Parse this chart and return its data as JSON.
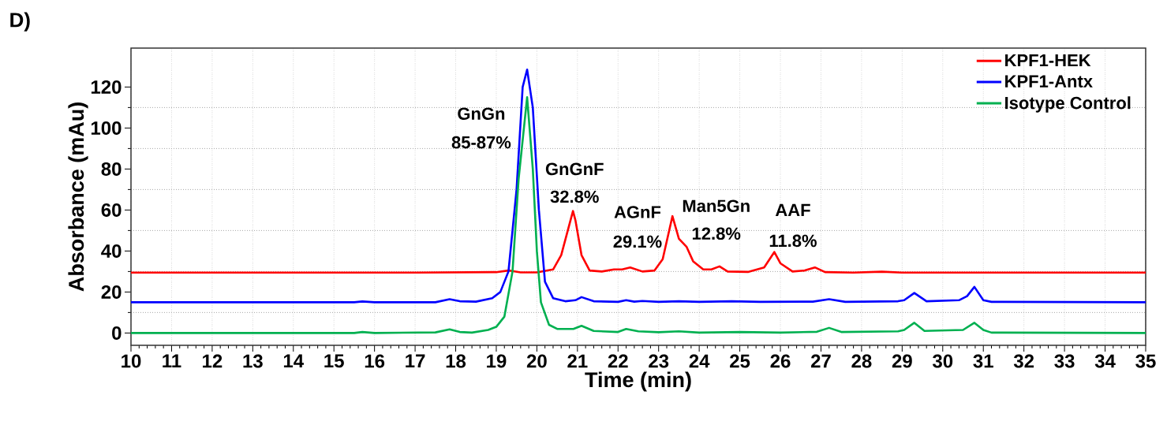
{
  "chart_data": {
    "type": "line",
    "xlabel": "Time (min)",
    "ylabel": "Absorbance (mAu)",
    "xlim": [
      10,
      35
    ],
    "ylim": [
      -6,
      139
    ],
    "xticks": [
      10,
      11,
      12,
      13,
      14,
      15,
      16,
      17,
      18,
      19,
      20,
      21,
      22,
      23,
      24,
      25,
      26,
      27,
      28,
      29,
      30,
      31,
      32,
      33,
      34,
      35
    ],
    "yticks": [
      0,
      20,
      40,
      60,
      80,
      100,
      120
    ],
    "grid": true,
    "legend": "top right",
    "marker": "none",
    "line_style": "solid",
    "annotations": [
      "D)",
      "GnGn",
      "85-87%",
      "GnGnF",
      "32.8%",
      "AGnF",
      "29.1%",
      "Man5Gn",
      "12.8%",
      "AAF",
      "11.8%"
    ],
    "series": [
      {
        "name": "KPF1-HEK",
        "color": "#ff0000",
        "x": [
          10,
          17,
          19.0,
          19.3,
          19.6,
          20.0,
          20.4,
          20.6,
          20.89,
          20.95,
          21.1,
          21.3,
          21.6,
          21.9,
          22.1,
          22.3,
          22.6,
          22.9,
          23.1,
          23.34,
          23.5,
          23.69,
          23.85,
          24.1,
          24.3,
          24.5,
          24.7,
          25.2,
          25.6,
          25.85,
          26.0,
          26.3,
          26.6,
          26.85,
          27.1,
          27.8,
          28.5,
          29,
          35
        ],
        "values": [
          29.5,
          29.5,
          29.7,
          30.5,
          29.6,
          29.6,
          31,
          38,
          59.5,
          55,
          38,
          30.5,
          30,
          31,
          31,
          32,
          30,
          30.5,
          36,
          57,
          46,
          42,
          35,
          31,
          31,
          32.5,
          30,
          29.8,
          32,
          39.5,
          34,
          30,
          30.5,
          32,
          29.7,
          29.5,
          29.9,
          29.5,
          29.5
        ]
      },
      {
        "name": "KPF1-Antx",
        "color": "#0000ff",
        "x": [
          10,
          15.5,
          15.7,
          16,
          17.5,
          17.85,
          18.1,
          18.5,
          18.9,
          19.1,
          19.3,
          19.5,
          19.65,
          19.76,
          19.9,
          20.05,
          20.2,
          20.4,
          20.7,
          20.95,
          21.1,
          21.4,
          22,
          22.2,
          22.4,
          22.6,
          23,
          23.5,
          24,
          24.8,
          25.5,
          26.8,
          27.2,
          27.6,
          28.9,
          29.05,
          29.3,
          29.6,
          30.4,
          30.6,
          30.78,
          31.0,
          31.2,
          35
        ],
        "values": [
          15,
          15,
          15.4,
          15,
          15,
          16.5,
          15.5,
          15.3,
          17,
          20,
          30,
          70,
          120,
          128.5,
          110,
          60,
          25,
          17,
          15.5,
          16,
          17.5,
          15.5,
          15.2,
          16,
          15.3,
          15.6,
          15.2,
          15.5,
          15.2,
          15.5,
          15.2,
          15.3,
          16.5,
          15.2,
          15.5,
          16,
          19.5,
          15.5,
          16,
          18,
          22.5,
          16,
          15.2,
          15
        ]
      },
      {
        "name": "Isotype Control",
        "color": "#00b050",
        "x": [
          10,
          15.5,
          15.7,
          16,
          17.5,
          17.85,
          18.1,
          18.4,
          18.8,
          19.0,
          19.2,
          19.4,
          19.55,
          19.76,
          19.9,
          20.0,
          20.1,
          20.3,
          20.5,
          20.9,
          21.1,
          21.4,
          22,
          22.2,
          22.5,
          23,
          23.5,
          24,
          25,
          26,
          26.9,
          27.2,
          27.5,
          28.9,
          29.05,
          29.3,
          29.55,
          30.5,
          30.78,
          31.0,
          31.2,
          35
        ],
        "values": [
          0,
          0,
          0.5,
          0,
          0.3,
          1.8,
          0.5,
          0.2,
          1.5,
          3,
          8,
          30,
          75,
          115,
          80,
          40,
          15,
          4,
          2,
          2,
          3.5,
          1,
          0.5,
          2,
          0.8,
          0.4,
          0.8,
          0.2,
          0.5,
          0.2,
          0.6,
          2.5,
          0.5,
          0.8,
          1.5,
          5,
          1,
          1.5,
          5,
          1.5,
          0.2,
          0
        ]
      }
    ]
  }
}
